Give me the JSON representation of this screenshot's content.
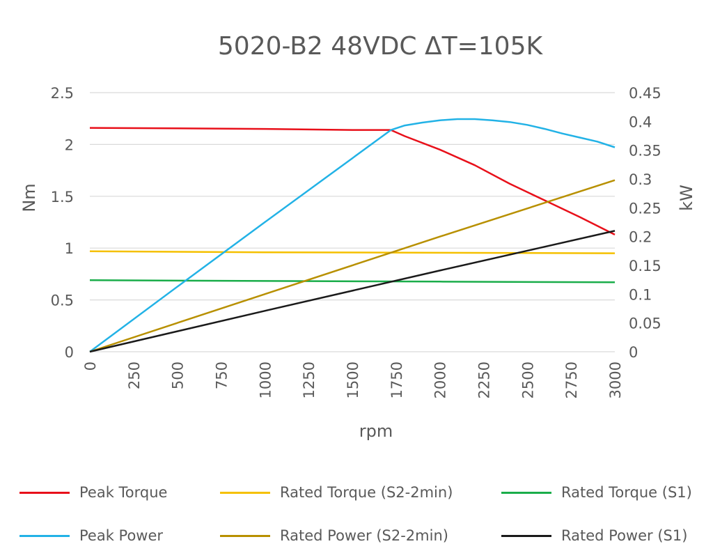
{
  "chart_data": {
    "type": "line",
    "title": "5020-B2 48VDC ΔT=105K",
    "xlabel": "rpm",
    "ylabel": "Nm",
    "y2label": "kW",
    "xlim": [
      0,
      3000
    ],
    "ylim": [
      0,
      2.5
    ],
    "y2lim": [
      0,
      0.45
    ],
    "x_ticks": [
      "0",
      "250",
      "500",
      "750",
      "1000",
      "1250",
      "1500",
      "1750",
      "2000",
      "2250",
      "2500",
      "2750",
      "3000"
    ],
    "y_ticks": [
      "0",
      "0.5",
      "1",
      "1.5",
      "2",
      "2.5"
    ],
    "y2_ticks": [
      "0",
      "0.05",
      "0.1",
      "0.15",
      "0.2",
      "0.25",
      "0.3",
      "0.35",
      "0.4",
      "0.45"
    ],
    "grid": true,
    "legend_position": "bottom",
    "series": [
      {
        "name": "Peak Torque",
        "axis": "left",
        "color": "#e8101a",
        "points": [
          [
            0,
            2.16
          ],
          [
            500,
            2.155
          ],
          [
            1000,
            2.15
          ],
          [
            1500,
            2.14
          ],
          [
            1720,
            2.14
          ],
          [
            1800,
            2.08
          ],
          [
            2000,
            1.95
          ],
          [
            2200,
            1.8
          ],
          [
            2400,
            1.62
          ],
          [
            2600,
            1.46
          ],
          [
            2800,
            1.3
          ],
          [
            3000,
            1.13
          ]
        ]
      },
      {
        "name": "Rated Torque (S2-2min)",
        "axis": "left",
        "color": "#f5c000",
        "points": [
          [
            0,
            0.97
          ],
          [
            1000,
            0.96
          ],
          [
            2000,
            0.955
          ],
          [
            3000,
            0.95
          ]
        ]
      },
      {
        "name": "Rated Torque (S1)",
        "axis": "left",
        "color": "#1aad4a",
        "points": [
          [
            0,
            0.69
          ],
          [
            1000,
            0.683
          ],
          [
            2000,
            0.677
          ],
          [
            3000,
            0.67
          ]
        ]
      },
      {
        "name": "Peak Power",
        "axis": "right",
        "color": "#22b2e6",
        "points": [
          [
            0,
            0
          ],
          [
            500,
            0.113
          ],
          [
            1000,
            0.225
          ],
          [
            1500,
            0.336
          ],
          [
            1720,
            0.385
          ],
          [
            1800,
            0.393
          ],
          [
            1900,
            0.398
          ],
          [
            2000,
            0.402
          ],
          [
            2100,
            0.404
          ],
          [
            2200,
            0.404
          ],
          [
            2300,
            0.402
          ],
          [
            2400,
            0.399
          ],
          [
            2500,
            0.394
          ],
          [
            2600,
            0.387
          ],
          [
            2700,
            0.379
          ],
          [
            2800,
            0.372
          ],
          [
            2900,
            0.365
          ],
          [
            3000,
            0.355
          ]
        ]
      },
      {
        "name": "Rated Power (S2-2min)",
        "axis": "right",
        "color": "#b89000",
        "points": [
          [
            0,
            0
          ],
          [
            1000,
            0.1
          ],
          [
            2000,
            0.2
          ],
          [
            3000,
            0.298
          ]
        ]
      },
      {
        "name": "Rated Power (S1)",
        "axis": "right",
        "color": "#1a1a1a",
        "points": [
          [
            0,
            0
          ],
          [
            1000,
            0.071
          ],
          [
            2000,
            0.141
          ],
          [
            3000,
            0.21
          ]
        ]
      }
    ]
  }
}
